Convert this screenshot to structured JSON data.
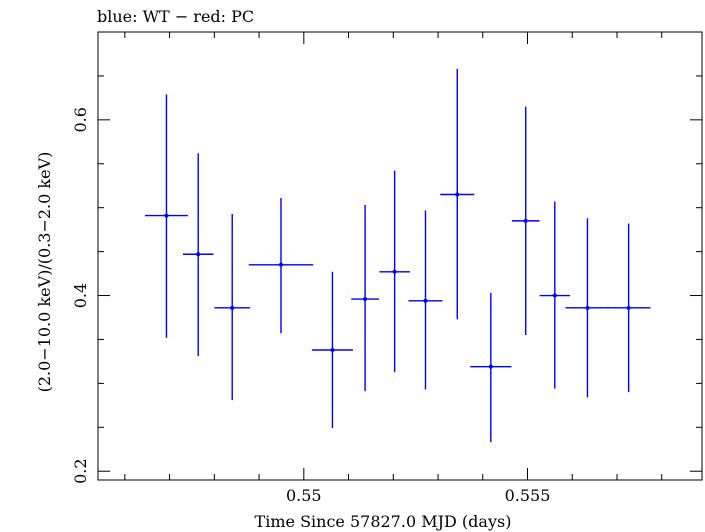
{
  "chart_data": {
    "type": "scatter",
    "title": "blue: WT − red: PC",
    "xlabel": "Time Since 57827.0 MJD (days)",
    "ylabel": "(2.0−10.0 keV)/(0.3−2.0 keV)",
    "xlim": [
      0.5454,
      0.5589
    ],
    "ylim": [
      0.19,
      0.7
    ],
    "x_major_ticks": [
      0.55,
      0.555
    ],
    "x_tick_labels": [
      "0.55",
      "0.555"
    ],
    "y_major_ticks": [
      0.2,
      0.4,
      0.6
    ],
    "y_tick_labels": [
      "0.2",
      "0.4",
      "0.6"
    ],
    "series": [
      {
        "name": "WT",
        "color": "#0000ff",
        "points": [
          {
            "x": 0.54693,
            "y": 0.491,
            "xerr": 0.00048,
            "ylo": 0.352,
            "yhi": 0.629
          },
          {
            "x": 0.54764,
            "y": 0.447,
            "xerr": 0.00034,
            "ylo": 0.331,
            "yhi": 0.562
          },
          {
            "x": 0.5484,
            "y": 0.386,
            "xerr": 0.0004,
            "ylo": 0.281,
            "yhi": 0.493
          },
          {
            "x": 0.54949,
            "y": 0.435,
            "xerr": 0.00072,
            "ylo": 0.357,
            "yhi": 0.511
          },
          {
            "x": 0.55064,
            "y": 0.338,
            "xerr": 0.00046,
            "ylo": 0.249,
            "yhi": 0.427
          },
          {
            "x": 0.55137,
            "y": 0.396,
            "xerr": 0.00031,
            "ylo": 0.291,
            "yhi": 0.503
          },
          {
            "x": 0.55203,
            "y": 0.427,
            "xerr": 0.00034,
            "ylo": 0.313,
            "yhi": 0.542
          },
          {
            "x": 0.55272,
            "y": 0.394,
            "xerr": 0.00038,
            "ylo": 0.293,
            "yhi": 0.497
          },
          {
            "x": 0.55343,
            "y": 0.515,
            "xerr": 0.00038,
            "ylo": 0.373,
            "yhi": 0.658
          },
          {
            "x": 0.55418,
            "y": 0.319,
            "xerr": 0.00046,
            "ylo": 0.233,
            "yhi": 0.403
          },
          {
            "x": 0.55496,
            "y": 0.485,
            "xerr": 0.00031,
            "ylo": 0.355,
            "yhi": 0.615
          },
          {
            "x": 0.55561,
            "y": 0.4,
            "xerr": 0.00034,
            "ylo": 0.294,
            "yhi": 0.507
          },
          {
            "x": 0.55634,
            "y": 0.386,
            "xerr": 0.00049,
            "ylo": 0.284,
            "yhi": 0.488
          },
          {
            "x": 0.55726,
            "y": 0.386,
            "xerr": 0.00049,
            "ylo": 0.29,
            "yhi": 0.482
          }
        ]
      }
    ]
  }
}
